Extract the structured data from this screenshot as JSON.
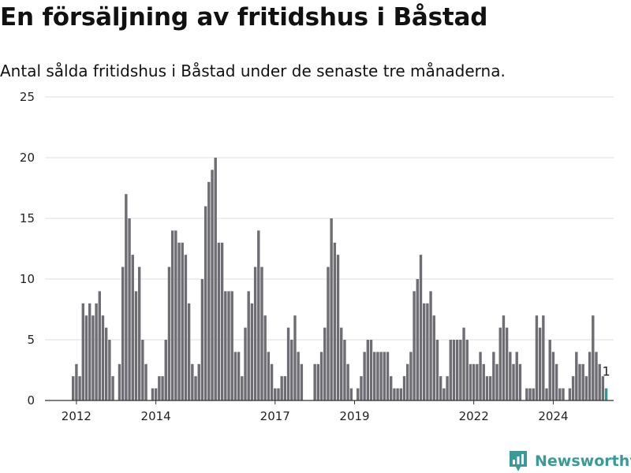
{
  "header": {
    "title": "En försäljning av fritidshus i Båstad",
    "subtitle": "Antal sålda fritidshus i Båstad under de senaste tre månaderna."
  },
  "brand": {
    "name": "Newsworthy",
    "color": "#3b9a96"
  },
  "colors": {
    "bar": "#6e6d73",
    "highlight": "#2a9a94",
    "grid": "#dedede",
    "axis": "#333333"
  },
  "chart_data": {
    "type": "bar",
    "x_start": "2011-12",
    "interval": "monthly",
    "ylim": [
      0,
      25
    ],
    "yticks": [
      0,
      5,
      10,
      15,
      20,
      25
    ],
    "xticks": [
      {
        "label": "2012",
        "at": "2012-01"
      },
      {
        "label": "2014",
        "at": "2014-01"
      },
      {
        "label": "2017",
        "at": "2017-01"
      },
      {
        "label": "2019",
        "at": "2019-01"
      },
      {
        "label": "2022",
        "at": "2022-01"
      },
      {
        "label": "2024",
        "at": "2024-01"
      }
    ],
    "values": [
      2,
      3,
      2,
      8,
      7,
      8,
      7,
      8,
      9,
      7,
      6,
      5,
      2,
      0,
      3,
      11,
      17,
      15,
      12,
      9,
      11,
      5,
      3,
      0,
      1,
      1,
      2,
      2,
      5,
      11,
      14,
      14,
      13,
      13,
      12,
      8,
      3,
      2,
      3,
      10,
      16,
      18,
      19,
      20,
      13,
      13,
      9,
      9,
      9,
      4,
      4,
      2,
      6,
      9,
      8,
      11,
      14,
      11,
      7,
      4,
      3,
      1,
      1,
      2,
      2,
      6,
      5,
      7,
      4,
      3,
      0,
      0,
      0,
      3,
      3,
      4,
      6,
      11,
      15,
      13,
      12,
      6,
      5,
      3,
      1,
      0,
      1,
      2,
      4,
      5,
      5,
      4,
      4,
      4,
      4,
      4,
      2,
      1,
      1,
      1,
      2,
      3,
      4,
      9,
      10,
      12,
      8,
      8,
      9,
      7,
      5,
      2,
      1,
      2,
      5,
      5,
      5,
      5,
      6,
      5,
      3,
      3,
      3,
      4,
      3,
      2,
      2,
      4,
      3,
      6,
      7,
      6,
      4,
      3,
      4,
      3,
      0,
      1,
      1,
      1,
      7,
      6,
      7,
      1,
      5,
      4,
      3,
      1,
      1,
      0,
      1,
      2,
      4,
      3,
      3,
      2,
      4,
      7,
      4,
      3,
      2,
      1
    ],
    "highlight_last": true,
    "annotation": {
      "text": "1"
    }
  }
}
